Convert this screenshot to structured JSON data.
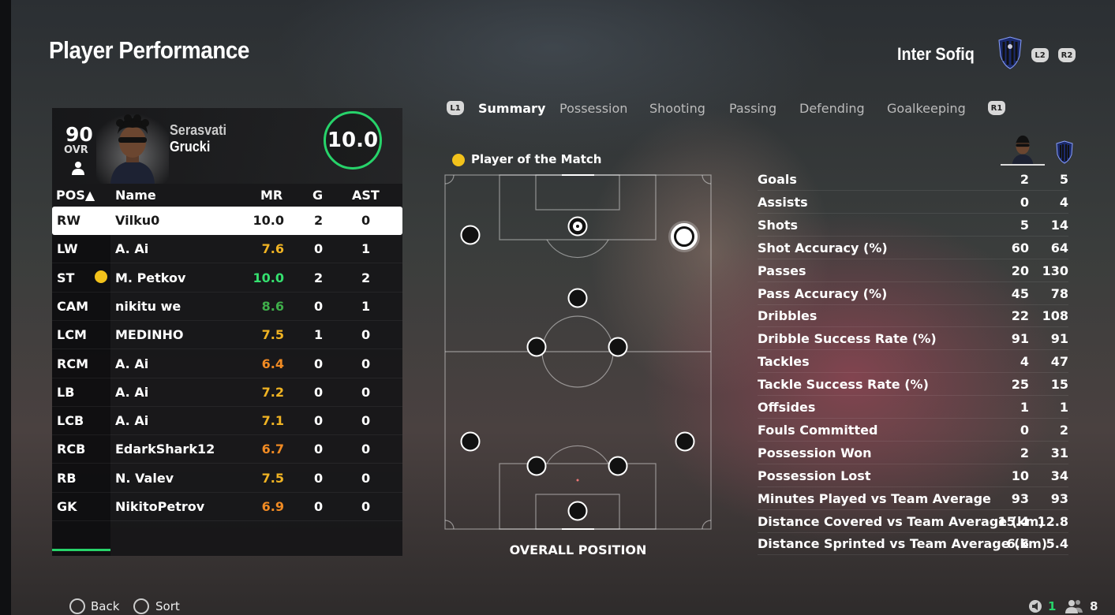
{
  "header": {
    "title": "Player Performance",
    "team_name": "Inter Sofiq",
    "btn_l2": "L2",
    "btn_r2": "R2"
  },
  "player_card": {
    "ovr": "90",
    "ovr_label": "OVR",
    "first_name": "Serasvati",
    "last_name": "Grucki",
    "match_rating": "10.0"
  },
  "table": {
    "headers": {
      "pos": "POS▲",
      "name": "Name",
      "mr": "MR",
      "g": "G",
      "ast": "AST"
    },
    "rows": [
      {
        "pos": "RW",
        "name": "Vilku0",
        "mr": "10.0",
        "g": "2",
        "ast": "0",
        "mr_color": "#1a1a1a",
        "selected": true
      },
      {
        "pos": "LW",
        "name": "A. Ai",
        "mr": "7.6",
        "g": "0",
        "ast": "1",
        "mr_color": "#f0b323"
      },
      {
        "pos": "ST",
        "name": "M. Petkov",
        "mr": "10.0",
        "g": "2",
        "ast": "2",
        "mr_color": "#35e06f",
        "motm": true
      },
      {
        "pos": "CAM",
        "name": "nikitu we",
        "mr": "8.6",
        "g": "0",
        "ast": "1",
        "mr_color": "#3fae4a"
      },
      {
        "pos": "LCM",
        "name": "MEDINHO",
        "mr": "7.5",
        "g": "1",
        "ast": "0",
        "mr_color": "#f0b323"
      },
      {
        "pos": "RCM",
        "name": "A. Ai",
        "mr": "6.4",
        "g": "0",
        "ast": "0",
        "mr_color": "#f08a23"
      },
      {
        "pos": "LB",
        "name": "A. Ai",
        "mr": "7.2",
        "g": "0",
        "ast": "0",
        "mr_color": "#f0b323"
      },
      {
        "pos": "LCB",
        "name": "A. Ai",
        "mr": "7.1",
        "g": "0",
        "ast": "0",
        "mr_color": "#f0b323"
      },
      {
        "pos": "RCB",
        "name": "EdarkShark12",
        "mr": "6.7",
        "g": "0",
        "ast": "0",
        "mr_color": "#f08a23"
      },
      {
        "pos": "RB",
        "name": "N. Valev",
        "mr": "7.5",
        "g": "0",
        "ast": "0",
        "mr_color": "#f0b323"
      },
      {
        "pos": "GK",
        "name": "NikitoPetrov",
        "mr": "6.9",
        "g": "0",
        "ast": "0",
        "mr_color": "#f08a23"
      }
    ]
  },
  "tabs": {
    "l1": "L1",
    "r1": "R1",
    "items": [
      "Summary",
      "Possession",
      "Shooting",
      "Passing",
      "Defending",
      "Goalkeeping"
    ],
    "active": "Summary"
  },
  "pitch": {
    "motm_label": "Player of the Match",
    "caption": "OVERALL POSITION"
  },
  "stats": [
    {
      "label": "Goals",
      "player": "2",
      "team": "5"
    },
    {
      "label": "Assists",
      "player": "0",
      "team": "4"
    },
    {
      "label": "Shots",
      "player": "5",
      "team": "14"
    },
    {
      "label": "Shot Accuracy (%)",
      "player": "60",
      "team": "64"
    },
    {
      "label": "Passes",
      "player": "20",
      "team": "130"
    },
    {
      "label": "Pass Accuracy (%)",
      "player": "45",
      "team": "78"
    },
    {
      "label": "Dribbles",
      "player": "22",
      "team": "108"
    },
    {
      "label": "Dribble Success Rate (%)",
      "player": "91",
      "team": "91"
    },
    {
      "label": "Tackles",
      "player": "4",
      "team": "47"
    },
    {
      "label": "Tackle Success Rate (%)",
      "player": "25",
      "team": "15"
    },
    {
      "label": "Offsides",
      "player": "1",
      "team": "1"
    },
    {
      "label": "Fouls Committed",
      "player": "0",
      "team": "2"
    },
    {
      "label": "Possession Won",
      "player": "2",
      "team": "31"
    },
    {
      "label": "Possession Lost",
      "player": "10",
      "team": "34"
    },
    {
      "label": "Minutes Played vs Team Average",
      "player": "93",
      "team": "93"
    },
    {
      "label": "Distance Covered vs Team Average (km)",
      "player": "15.4",
      "team": "12.8"
    },
    {
      "label": "Distance Sprinted vs Team Average (km)",
      "player": "6.6",
      "team": "5.4"
    }
  ],
  "footer": {
    "back_label": "Back",
    "sort_label": "Sort",
    "page_count": "1",
    "players_count": "8",
    "accent": "#27d36a"
  }
}
